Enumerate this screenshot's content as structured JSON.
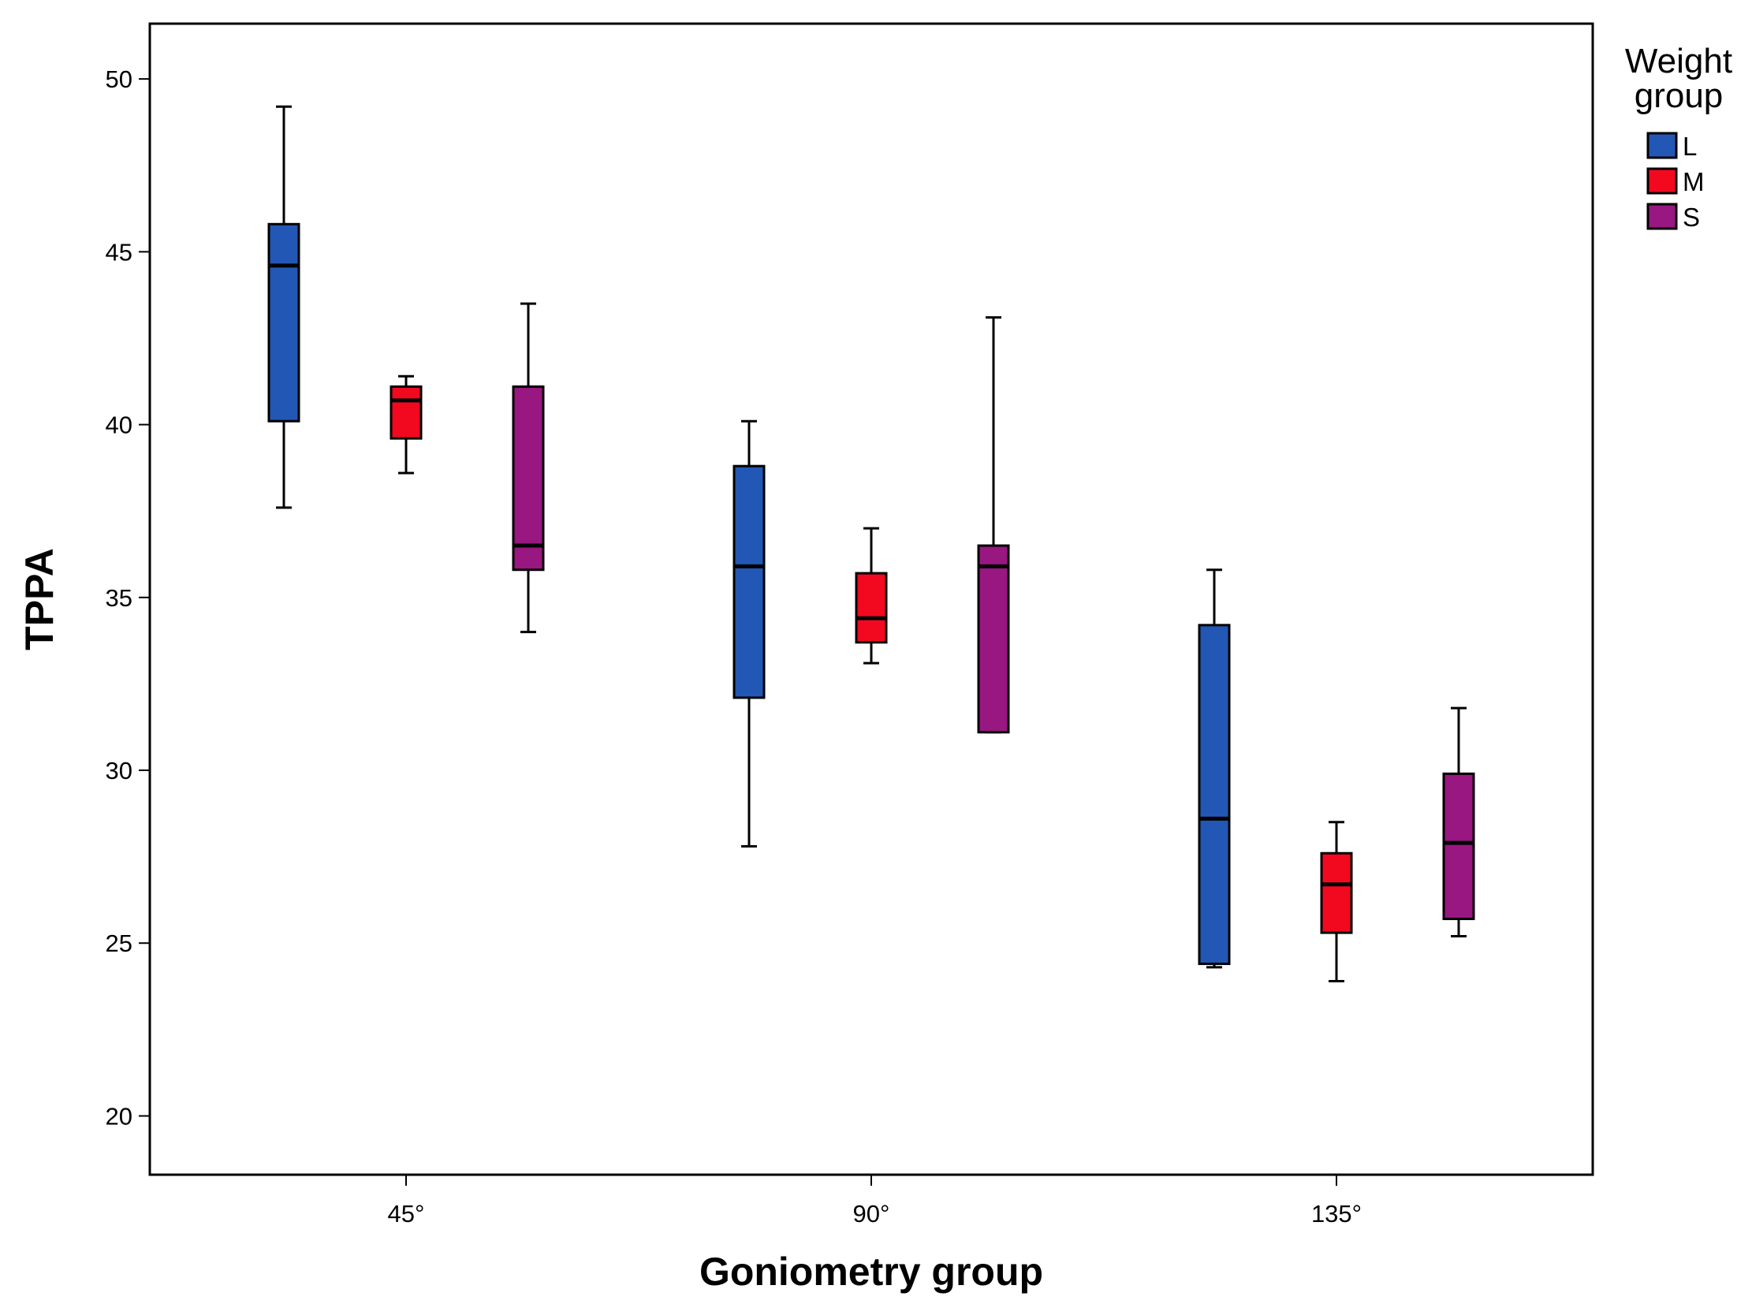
{
  "chart_data": {
    "type": "boxplot",
    "title": "",
    "xlabel": "Goniometry group",
    "ylabel": "TPPA",
    "ylim": [
      18.3,
      51.6
    ],
    "yticks": [
      20,
      25,
      30,
      35,
      40,
      45,
      50
    ],
    "grid": false,
    "categories": [
      "45°",
      "90°",
      "135°"
    ],
    "legend": {
      "title_lines": [
        "Weight",
        "group"
      ],
      "position": "right",
      "entries": [
        {
          "label": "L",
          "color": "#2257b5"
        },
        {
          "label": "M",
          "color": "#f2091f"
        },
        {
          "label": "S",
          "color": "#981781"
        }
      ]
    },
    "series": [
      {
        "name": "L",
        "color": "#2257b5",
        "boxes": [
          {
            "min": 37.6,
            "q1": 40.1,
            "median": 44.6,
            "q3": 45.8,
            "max": 49.2
          },
          {
            "min": 27.8,
            "q1": 32.1,
            "median": 35.9,
            "q3": 38.8,
            "max": 40.1
          },
          {
            "min": 24.3,
            "q1": 24.4,
            "median": 28.6,
            "q3": 34.2,
            "max": 35.8
          }
        ]
      },
      {
        "name": "M",
        "color": "#f2091f",
        "boxes": [
          {
            "min": 38.6,
            "q1": 39.6,
            "median": 40.7,
            "q3": 41.1,
            "max": 41.4
          },
          {
            "min": 33.1,
            "q1": 33.7,
            "median": 34.4,
            "q3": 35.7,
            "max": 37.0
          },
          {
            "min": 23.9,
            "q1": 25.3,
            "median": 26.7,
            "q3": 27.6,
            "max": 28.5
          }
        ]
      },
      {
        "name": "S",
        "color": "#981781",
        "boxes": [
          {
            "min": 34.0,
            "q1": 35.8,
            "median": 36.5,
            "q3": 41.1,
            "max": 43.5
          },
          {
            "min": 31.1,
            "q1": 31.1,
            "median": 35.9,
            "q3": 36.5,
            "max": 43.1
          },
          {
            "min": 25.2,
            "q1": 25.7,
            "median": 27.9,
            "q3": 29.9,
            "max": 31.8
          }
        ]
      }
    ]
  }
}
